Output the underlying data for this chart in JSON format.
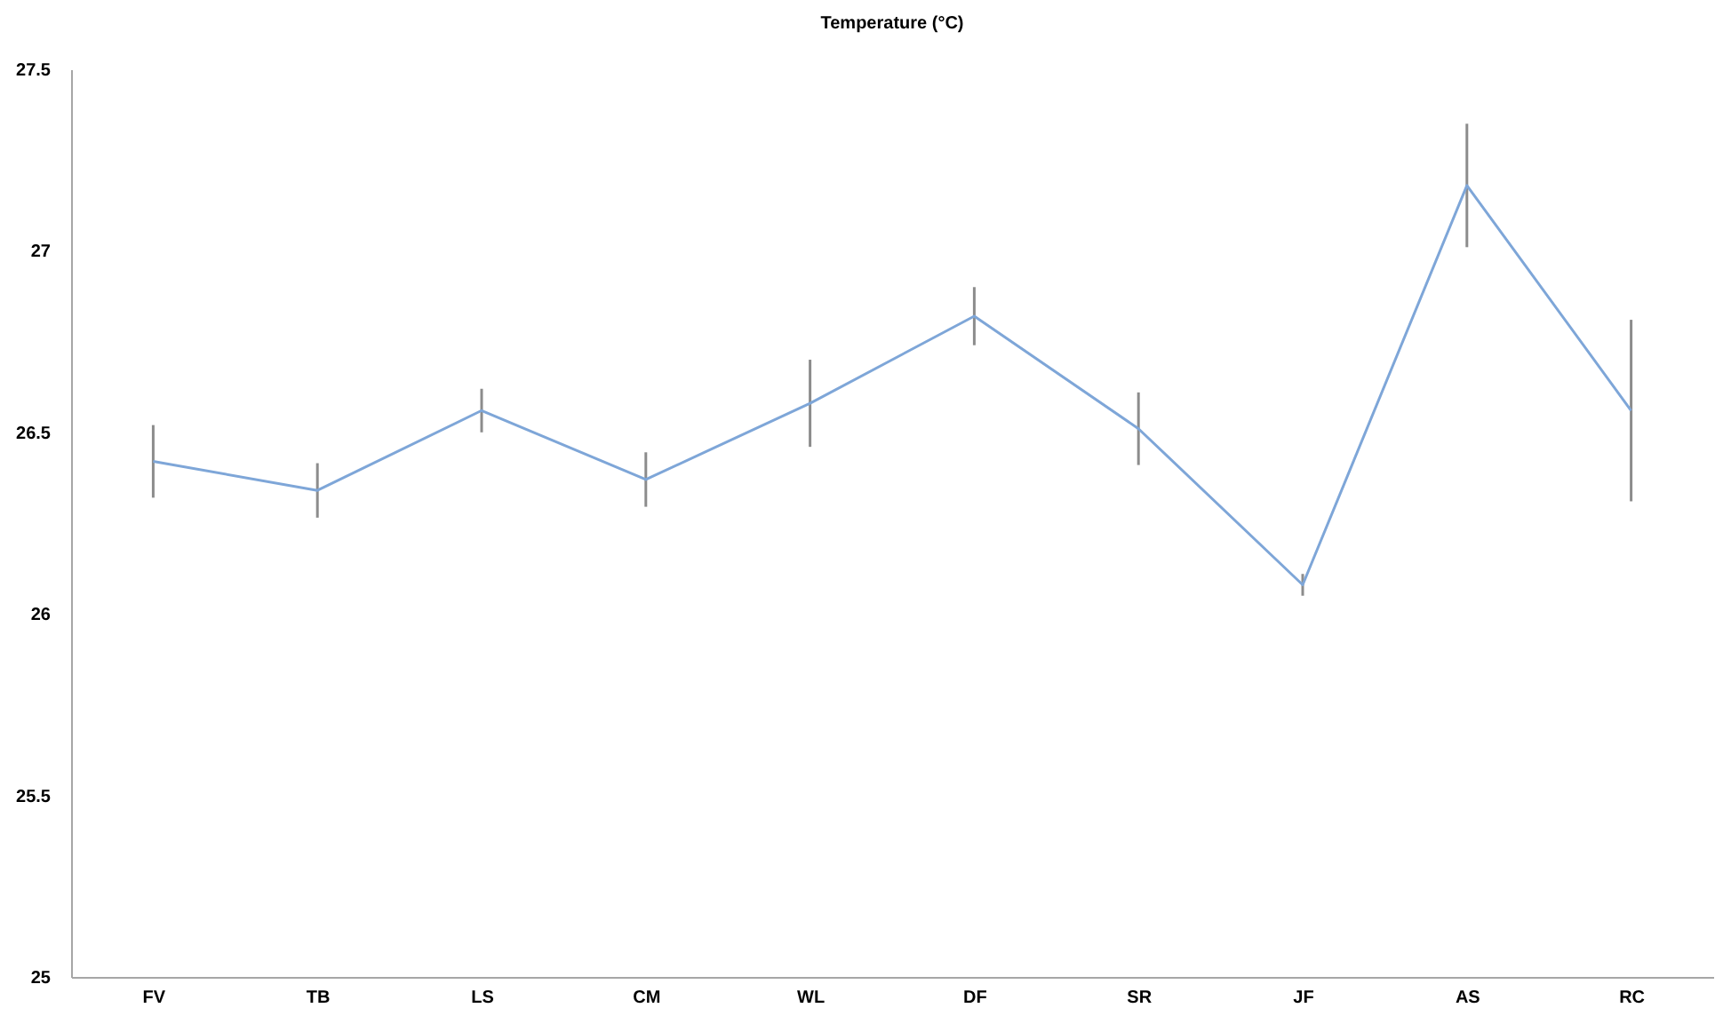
{
  "chart_data": {
    "type": "line",
    "title": "Temperature (°C)",
    "categories": [
      "FV",
      "TB",
      "LS",
      "CM",
      "WL",
      "DF",
      "SR",
      "JF",
      "AS",
      "RC"
    ],
    "series": [
      {
        "color": "#7ea6d8",
        "values": [
          26.42,
          26.34,
          26.56,
          26.37,
          26.58,
          26.82,
          26.51,
          26.08,
          27.18,
          26.56
        ],
        "errors": [
          0.1,
          0.075,
          0.06,
          0.075,
          0.12,
          0.08,
          0.1,
          0.03,
          0.17,
          0.25
        ]
      }
    ],
    "ylim": [
      25,
      27.5
    ],
    "yticks": [
      25,
      25.5,
      26,
      26.5,
      27,
      27.5
    ],
    "grid": false,
    "marker": "none",
    "line_style": "solid"
  }
}
